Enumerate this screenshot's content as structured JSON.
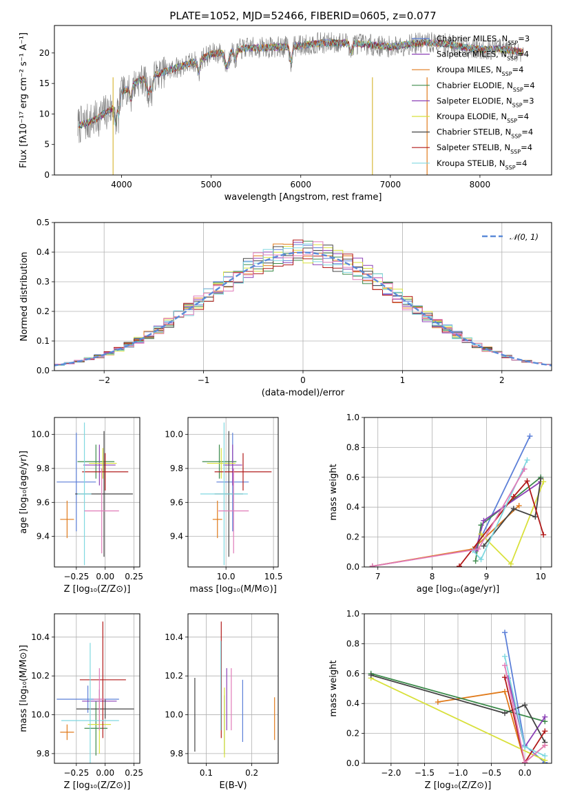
{
  "figure_title": "PLATE=1052, MJD=52466, FIBERID=0605, z=0.077",
  "colors": {
    "Chabrier MILES": "#5b7fd8",
    "Salpeter MILES": "#8a3fb5",
    "Kroupa MILES": "#e07a1a",
    "Chabrier ELODIE": "#3b8a4a",
    "Salpeter ELODIE": "#8a3fb5",
    "Kroupa ELODIE": "#d8e03a",
    "Chabrier STELIB": "#444444",
    "Salpeter STELIB": "#b01818",
    "Kroupa STELIB": "#7fd8e0",
    "pink": "#e07ab8",
    "gauss": "#5b8ad8"
  },
  "chart_data": [
    {
      "id": "spectrum",
      "type": "line",
      "xlabel": "wavelength [Angstrom, rest frame]",
      "ylabel": "Flux [fλ10⁻¹⁷ erg cm⁻² s⁻¹ A⁻¹]",
      "xlim": [
        3250,
        8800
      ],
      "ylim": [
        0,
        24.5
      ],
      "xticks": [
        4000,
        5000,
        6000,
        7000,
        8000
      ],
      "yticks": [
        0,
        5,
        10,
        15,
        20
      ],
      "grid": false,
      "legend_position": "right",
      "continuum_x": [
        3500,
        3700,
        3900,
        4000,
        4200,
        4400,
        4600,
        4800,
        5000,
        5200,
        5400,
        5600,
        5800,
        6000,
        6200,
        6400,
        6600,
        6800,
        7000,
        7200,
        7400,
        7600,
        7800,
        8000,
        8200,
        8500
      ],
      "continuum_y": [
        8,
        9,
        11,
        13.5,
        15.5,
        16.5,
        17.5,
        18.5,
        19.8,
        20.3,
        20.8,
        20.9,
        21.0,
        21.2,
        21.6,
        21.7,
        21.6,
        21.3,
        21.0,
        21.4,
        21.7,
        21.5,
        21.0,
        20.6,
        20.7,
        20.1
      ],
      "series": [
        {
          "name": "Chabrier MILES",
          "legend_text": "Chabrier MILES, N",
          "sub": "SSP",
          "suffix": "=3"
        },
        {
          "name": "Salpeter MILES",
          "legend_text": "Salpeter MILES, N",
          "sub": "SSP",
          "suffix": "=4"
        },
        {
          "name": "Kroupa MILES",
          "legend_text": "Kroupa MILES, N",
          "sub": "SSP",
          "suffix": "=4"
        },
        {
          "name": "Chabrier ELODIE",
          "legend_text": "Chabrier ELODIE, N",
          "sub": "SSP",
          "suffix": "=4"
        },
        {
          "name": "Salpeter ELODIE",
          "legend_text": "Salpeter ELODIE, N",
          "sub": "SSP",
          "suffix": "=3"
        },
        {
          "name": "Kroupa ELODIE",
          "legend_text": "Kroupa ELODIE, N",
          "sub": "SSP",
          "suffix": "=4"
        },
        {
          "name": "Chabrier STELIB",
          "legend_text": "Chabrier STELIB, N",
          "sub": "SSP",
          "suffix": "=4"
        },
        {
          "name": "Salpeter STELIB",
          "legend_text": "Salpeter STELIB, N",
          "sub": "SSP",
          "suffix": "=4"
        },
        {
          "name": "Kroupa STELIB",
          "legend_text": "Kroupa STELIB, N",
          "sub": "SSP",
          "suffix": "=4"
        }
      ]
    },
    {
      "id": "residuals",
      "type": "histogram",
      "xlabel": "(data-model)/error",
      "ylabel": "Normed distribution",
      "xlim": [
        -2.5,
        2.5
      ],
      "ylim": [
        0,
        0.5
      ],
      "xticks": [
        -2,
        -1,
        0,
        1,
        2
      ],
      "xtick_labels": [
        "−2",
        "−1",
        "0",
        "1",
        "2"
      ],
      "yticks": [
        0.0,
        0.1,
        0.2,
        0.3,
        0.4,
        0.5
      ],
      "ytick_labels": [
        "0.0",
        "0.1",
        "0.2",
        "0.3",
        "0.4",
        "0.5"
      ],
      "grid": true,
      "legend_position": "upper right",
      "legend_label": "𝒩(0, 1)",
      "gauss_mean": 0,
      "gauss_sigma": 1,
      "bin_width": 0.1
    },
    {
      "id": "age_vs_Z",
      "type": "errorbar",
      "xlabel": "Z [log₁₀(Z/Z⊙)]",
      "ylabel": "age  [log₁₀(age/yr)]",
      "xlim": [
        -0.44,
        0.3
      ],
      "ylim": [
        9.22,
        10.1
      ],
      "xticks": [
        -0.25,
        0.0,
        0.25
      ],
      "xtick_labels": [
        "−0.25",
        "0.00",
        "0.25"
      ],
      "yticks": [
        9.4,
        9.6,
        9.8,
        10.0
      ],
      "ytick_labels": [
        "9.4",
        "9.6",
        "9.8",
        "10.0"
      ],
      "grid": true,
      "points": [
        {
          "c": "#5b7fd8",
          "x": -0.25,
          "y": 9.72,
          "xe": 0.17,
          "ye": 0.29
        },
        {
          "c": "#e07a1a",
          "x": -0.33,
          "y": 9.5,
          "xe": 0.06,
          "ye": 0.11
        },
        {
          "c": "#3b8a4a",
          "x": -0.08,
          "y": 9.84,
          "xe": 0.16,
          "ye": 0.1
        },
        {
          "c": "#8a3fb5",
          "x": -0.05,
          "y": 9.82,
          "xe": 0.14,
          "ye": 0.12
        },
        {
          "c": "#d8e03a",
          "x": -0.02,
          "y": 9.83,
          "xe": 0.12,
          "ye": 0.09
        },
        {
          "c": "#444444",
          "x": -0.01,
          "y": 9.65,
          "xe": 0.25,
          "ye": 0.37
        },
        {
          "c": "#b01818",
          "x": 0.0,
          "y": 9.78,
          "xe": 0.2,
          "ye": 0.11
        },
        {
          "c": "#7fd8e0",
          "x": -0.18,
          "y": 9.65,
          "xe": 0.06,
          "ye": 0.42
        },
        {
          "c": "#e07ab8",
          "x": -0.03,
          "y": 9.55,
          "xe": 0.15,
          "ye": 0.25
        }
      ]
    },
    {
      "id": "age_vs_mass",
      "type": "errorbar",
      "xlabel": "mass [log₁₀(M/M⊙)]",
      "ylabel": "",
      "xlim": [
        9.6,
        10.55
      ],
      "ylim": [
        9.22,
        10.1
      ],
      "xticks": [
        10.0,
        10.5
      ],
      "xtick_labels": [
        "10.0",
        "10.5"
      ],
      "yticks": [
        9.4,
        9.6,
        9.8,
        10.0
      ],
      "ytick_labels": [
        "9.4",
        "9.6",
        "9.8",
        "10.0"
      ],
      "grid": true,
      "points": [
        {
          "c": "#5b7fd8",
          "x": 10.07,
          "y": 9.72,
          "xe": 0.17,
          "ye": 0.29
        },
        {
          "c": "#e07a1a",
          "x": 9.91,
          "y": 9.5,
          "xe": 0.05,
          "ye": 0.11
        },
        {
          "c": "#3b8a4a",
          "x": 9.93,
          "y": 9.84,
          "xe": 0.18,
          "ye": 0.1
        },
        {
          "c": "#8a3fb5",
          "x": 10.07,
          "y": 9.82,
          "xe": 0.1,
          "ye": 0.12
        },
        {
          "c": "#d8e03a",
          "x": 9.95,
          "y": 9.83,
          "xe": 0.15,
          "ye": 0.09
        },
        {
          "c": "#444444",
          "x": 10.03,
          "y": 9.65,
          "xe": 0.15,
          "ye": 0.37
        },
        {
          "c": "#b01818",
          "x": 10.18,
          "y": 9.78,
          "xe": 0.3,
          "ye": 0.11
        },
        {
          "c": "#7fd8e0",
          "x": 9.98,
          "y": 9.65,
          "xe": 0.25,
          "ye": 0.42
        },
        {
          "c": "#e07ab8",
          "x": 10.08,
          "y": 9.55,
          "xe": 0.16,
          "ye": 0.25
        }
      ]
    },
    {
      "id": "weight_vs_age",
      "type": "line",
      "xlabel": "age  [log₁₀(age/yr)]",
      "ylabel": "mass weight",
      "xlim": [
        6.75,
        10.2
      ],
      "ylim": [
        0,
        1
      ],
      "xticks": [
        7,
        8,
        9,
        10
      ],
      "xtick_labels": [
        "7",
        "8",
        "9",
        "10"
      ],
      "yticks": [
        0,
        0.2,
        0.4,
        0.6,
        0.8,
        1.0
      ],
      "ytick_labels": [
        "0.0",
        "0.2",
        "0.4",
        "0.6",
        "0.8",
        "1.0"
      ],
      "grid": true,
      "series": [
        {
          "c": "#5b7fd8",
          "x": [
            6.9,
            8.8,
            9.8
          ],
          "y": [
            0.005,
            0.12,
            0.875
          ]
        },
        {
          "c": "#e07a1a",
          "x": [
            6.9,
            8.75,
            9.6
          ],
          "y": [
            0.005,
            0.12,
            0.41
          ]
        },
        {
          "c": "#3b8a4a",
          "x": [
            8.8,
            8.9,
            10.0
          ],
          "y": [
            0.04,
            0.28,
            0.6
          ]
        },
        {
          "c": "#8a3fb5",
          "x": [
            8.8,
            8.95,
            10.0
          ],
          "y": [
            0.11,
            0.31,
            0.57
          ]
        },
        {
          "c": "#d8e03a",
          "x": [
            8.9,
            9.45,
            10.05
          ],
          "y": [
            0.22,
            0.02,
            0.57
          ]
        },
        {
          "c": "#444444",
          "x": [
            8.95,
            9.5,
            9.9,
            10.0
          ],
          "y": [
            0.14,
            0.39,
            0.335,
            0.59
          ]
        },
        {
          "c": "#b01818",
          "x": [
            8.5,
            9.5,
            9.75,
            10.05
          ],
          "y": [
            0.005,
            0.47,
            0.575,
            0.215
          ]
        },
        {
          "c": "#7fd8e0",
          "x": [
            8.75,
            8.9,
            9.75
          ],
          "y": [
            0.11,
            0.05,
            0.715
          ]
        },
        {
          "c": "#e07ab8",
          "x": [
            6.9,
            8.85,
            9.7
          ],
          "y": [
            0.005,
            0.12,
            0.655
          ]
        }
      ]
    },
    {
      "id": "mass_vs_Z",
      "type": "errorbar",
      "xlabel": "Z [log₁₀(Z/Z⊙)]",
      "ylabel": "mass [log₁₀(M/M⊙)]",
      "xlim": [
        -0.44,
        0.3
      ],
      "ylim": [
        9.75,
        10.52
      ],
      "xticks": [
        -0.25,
        0.0,
        0.25
      ],
      "xtick_labels": [
        "−0.25",
        "0.00",
        "0.25"
      ],
      "yticks": [
        9.8,
        10.0,
        10.2,
        10.4
      ],
      "ytick_labels": [
        "9.8",
        "10.0",
        "10.2",
        "10.4"
      ],
      "grid": true,
      "points": [
        {
          "c": "#5b7fd8",
          "x": -0.15,
          "y": 10.08,
          "xe": 0.27,
          "ye": 0.07
        },
        {
          "c": "#e07a1a",
          "x": -0.33,
          "y": 9.91,
          "xe": 0.06,
          "ye": 0.04
        },
        {
          "c": "#3b8a4a",
          "x": -0.08,
          "y": 9.93,
          "xe": 0.1,
          "ye": 0.14
        },
        {
          "c": "#8a3fb5",
          "x": -0.05,
          "y": 10.07,
          "xe": 0.15,
          "ye": 0.06
        },
        {
          "c": "#d8e03a",
          "x": -0.05,
          "y": 9.95,
          "xe": 0.1,
          "ye": 0.15
        },
        {
          "c": "#444444",
          "x": 0.0,
          "y": 10.03,
          "xe": 0.25,
          "ye": 0.05
        },
        {
          "c": "#b01818",
          "x": -0.02,
          "y": 10.18,
          "xe": 0.2,
          "ye": 0.3
        },
        {
          "c": "#7fd8e0",
          "x": -0.13,
          "y": 9.97,
          "xe": 0.25,
          "ye": 0.4
        },
        {
          "c": "#e07ab8",
          "x": -0.05,
          "y": 10.08,
          "xe": 0.05,
          "ye": 0.16
        }
      ]
    },
    {
      "id": "mass_vs_ebv",
      "type": "errorbar",
      "xlabel": "E(B-V)",
      "ylabel": "",
      "xlim": [
        0.06,
        0.258
      ],
      "ylim": [
        9.75,
        10.52
      ],
      "xticks": [
        0.1,
        0.2
      ],
      "xtick_labels": [
        "0.1",
        "0.2"
      ],
      "yticks": [
        9.8,
        10.0,
        10.2,
        10.4
      ],
      "ytick_labels": [
        "9.8",
        "10.0",
        "10.2",
        "10.4"
      ],
      "grid": true,
      "points": [
        {
          "c": "#5b7fd8",
          "x": 0.18,
          "y": 10.02,
          "xe": 0,
          "ye": 0.16
        },
        {
          "c": "#e07a1a",
          "x": 0.25,
          "y": 9.98,
          "xe": 0,
          "ye": 0.11
        },
        {
          "c": "#3b8a4a",
          "x": 0.14,
          "y": 9.95,
          "xe": 0,
          "ye": 0.15
        },
        {
          "c": "#8a3fb5",
          "x": 0.145,
          "y": 10.08,
          "xe": 0,
          "ye": 0.16
        },
        {
          "c": "#d8e03a",
          "x": 0.14,
          "y": 9.96,
          "xe": 0,
          "ye": 0.18
        },
        {
          "c": "#444444",
          "x": 0.075,
          "y": 10.0,
          "xe": 0,
          "ye": 0.19
        },
        {
          "c": "#b01818",
          "x": 0.133,
          "y": 10.18,
          "xe": 0,
          "ye": 0.3
        },
        {
          "c": "#7fd8e0",
          "x": 0.132,
          "y": 10.15,
          "xe": 0,
          "ye": 0.23
        },
        {
          "c": "#e07ab8",
          "x": 0.155,
          "y": 10.08,
          "xe": 0,
          "ye": 0.16
        }
      ]
    },
    {
      "id": "weight_vs_Z",
      "type": "line",
      "xlabel": "Z [log₁₀(Z/Z⊙)]",
      "ylabel": "mass weight",
      "xlim": [
        -2.4,
        0.4
      ],
      "ylim": [
        0,
        1
      ],
      "xticks": [
        -2.0,
        -1.5,
        -1.0,
        -0.5,
        0.0
      ],
      "xtick_labels": [
        "−2.0",
        "−1.5",
        "−1.0",
        "−0.5",
        "0.0"
      ],
      "yticks": [
        0,
        0.2,
        0.4,
        0.6,
        0.8,
        1.0
      ],
      "ytick_labels": [
        "0.0",
        "0.2",
        "0.4",
        "0.6",
        "0.8",
        "1.0"
      ],
      "grid": true,
      "series": [
        {
          "c": "#5b7fd8",
          "x": [
            -0.3,
            0.0,
            0.3
          ],
          "y": [
            0.875,
            0.12,
            0.005
          ]
        },
        {
          "c": "#e07a1a",
          "x": [
            -1.3,
            -0.3,
            0.0,
            0.3
          ],
          "y": [
            0.41,
            0.48,
            0.005,
            0.12
          ]
        },
        {
          "c": "#3b8a4a",
          "x": [
            -2.3,
            0.3
          ],
          "y": [
            0.6,
            0.28
          ]
        },
        {
          "c": "#8a3fb5",
          "x": [
            -0.25,
            0.0,
            0.3
          ],
          "y": [
            0.57,
            0.11,
            0.31
          ]
        },
        {
          "c": "#d8e03a",
          "x": [
            -2.3,
            0.3
          ],
          "y": [
            0.57,
            0.02
          ]
        },
        {
          "c": "#444444",
          "x": [
            -2.3,
            -0.3,
            0.0,
            0.3
          ],
          "y": [
            0.59,
            0.335,
            0.39,
            0.14
          ]
        },
        {
          "c": "#b01818",
          "x": [
            -0.3,
            0.0,
            0.3
          ],
          "y": [
            0.575,
            0.005,
            0.215
          ]
        },
        {
          "c": "#7fd8e0",
          "x": [
            -0.3,
            0.0,
            0.3
          ],
          "y": [
            0.715,
            0.11,
            0.05
          ]
        },
        {
          "c": "#e07ab8",
          "x": [
            -0.3,
            0.0,
            0.3
          ],
          "y": [
            0.655,
            0.005,
            0.12
          ]
        }
      ]
    }
  ]
}
